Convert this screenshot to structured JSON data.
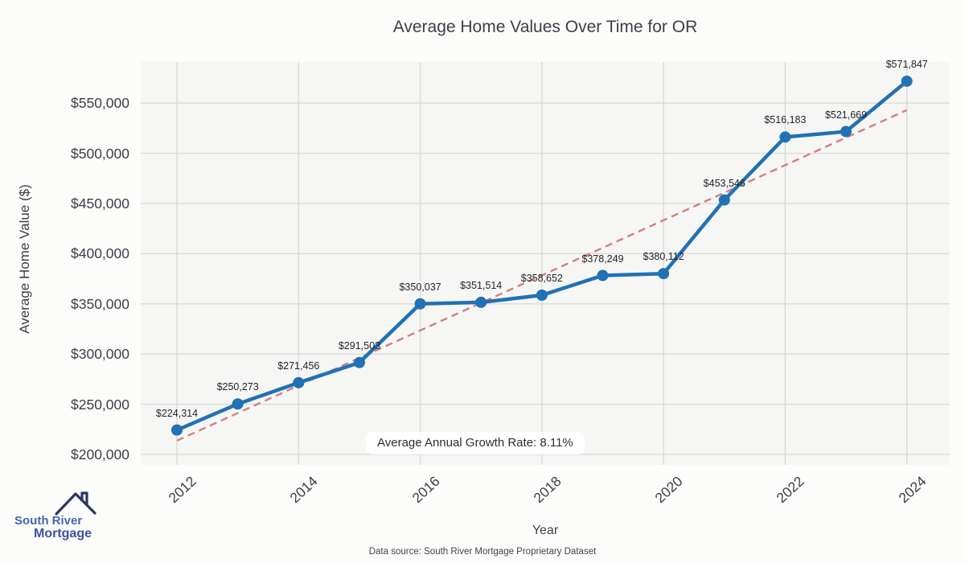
{
  "title": "Average Home Values Over Time for OR",
  "axes": {
    "x_label": "Year",
    "y_label": "Average Home Value ($)"
  },
  "annotation": {
    "text": "Average Annual Growth Rate: 8.11%"
  },
  "footer": {
    "text": "Data source: South River Mortgage Proprietary Dataset"
  },
  "logo": {
    "line1": "South River",
    "line2": "Mortgage"
  },
  "chart_data": {
    "type": "line",
    "title": "Average Home Values Over Time for OR",
    "xlabel": "Year",
    "ylabel": "Average Home Value ($)",
    "x": [
      2012,
      2013,
      2014,
      2015,
      2016,
      2017,
      2018,
      2019,
      2020,
      2021,
      2022,
      2023,
      2024
    ],
    "series": [
      {
        "name": "average-home-value",
        "values": [
          224314,
          250273,
          271456,
          291503,
          350037,
          351514,
          358652,
          378249,
          380112,
          453546,
          516183,
          521669,
          571847
        ],
        "labels": [
          "$224,314",
          "$250,273",
          "$271,456",
          "$291,503",
          "$350,037",
          "$351,514",
          "$358,652",
          "$378,249",
          "$380,112",
          "$453,546",
          "$516,183",
          "$521,669",
          "$571,847"
        ],
        "color": "#2171b5",
        "style": "solid",
        "markers": true
      },
      {
        "name": "trend-linear-fit",
        "x": [
          2012,
          2024
        ],
        "values": [
          213772,
          543052
        ],
        "color": "#d47f7f",
        "style": "dashed",
        "markers": false
      }
    ],
    "x_ticks": [
      2012,
      2014,
      2016,
      2018,
      2020,
      2022,
      2024
    ],
    "y_ticks": [
      {
        "value": 200000,
        "label": "$200,000"
      },
      {
        "value": 250000,
        "label": "$250,000"
      },
      {
        "value": 300000,
        "label": "$300,000"
      },
      {
        "value": 350000,
        "label": "$350,000"
      },
      {
        "value": 400000,
        "label": "$400,000"
      },
      {
        "value": 450000,
        "label": "$450,000"
      },
      {
        "value": 500000,
        "label": "$500,000"
      },
      {
        "value": 550000,
        "label": "$550,000"
      }
    ],
    "xlim": [
      2011.405,
      2024.705
    ],
    "ylim": [
      189580,
      591030
    ],
    "grid": true,
    "legend": "none",
    "plot_bg": "#f6f6f4",
    "grid_color": "#d9d9d6",
    "annotation": "Average Annual Growth Rate: 8.11%"
  }
}
